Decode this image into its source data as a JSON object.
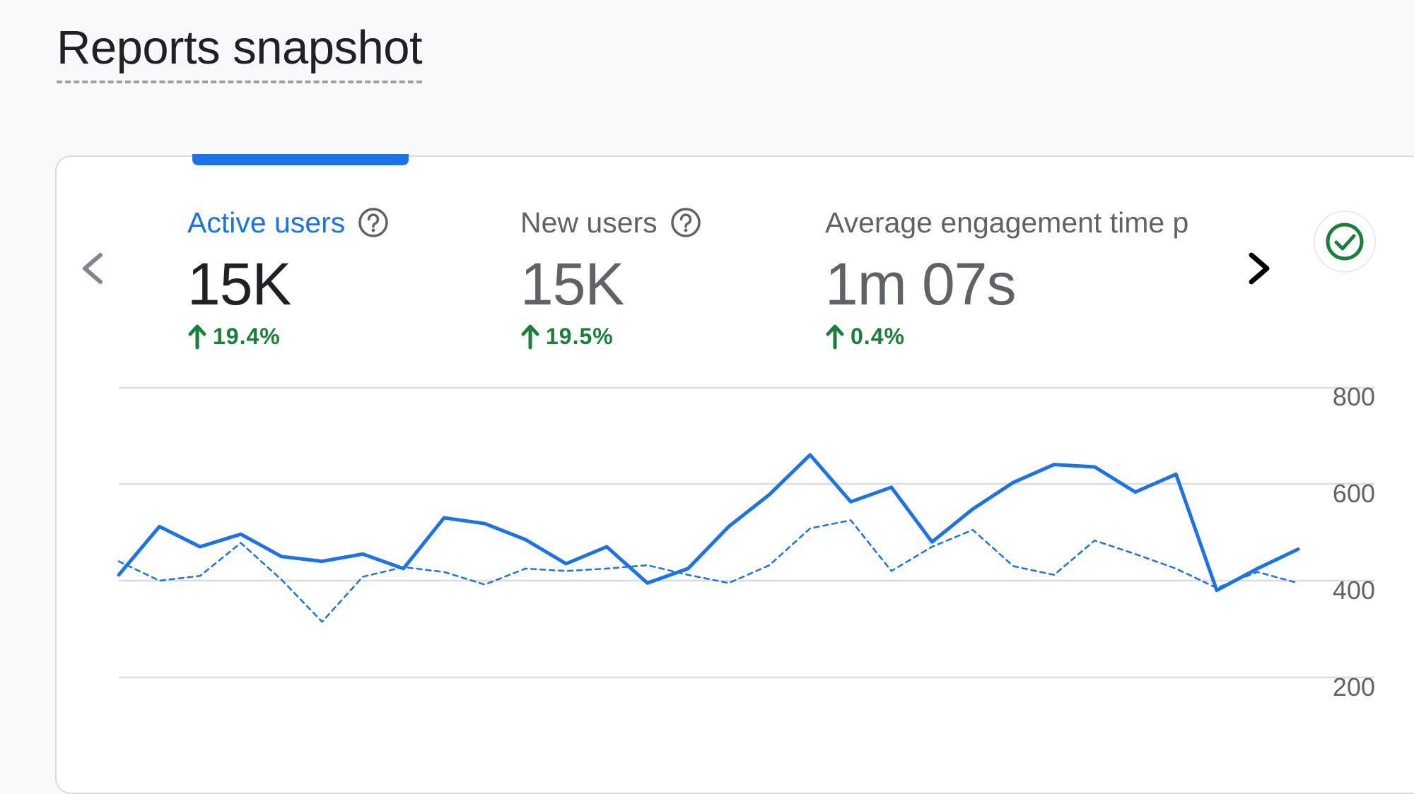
{
  "header": {
    "title": "Reports snapshot"
  },
  "metrics": [
    {
      "label": "Active users",
      "value": "15K",
      "change": "19.4%",
      "direction": "up",
      "selected": true,
      "has_help": true
    },
    {
      "label": "New users",
      "value": "15K",
      "change": "19.5%",
      "direction": "up",
      "selected": false,
      "has_help": true
    },
    {
      "label": "Average engagement time p",
      "value": "1m 07s",
      "change": "0.4%",
      "direction": "up",
      "selected": false,
      "has_help": false
    }
  ],
  "icons": {
    "prev": "chevron-left-icon",
    "next": "chevron-right-icon",
    "help": "help-circle-icon",
    "trend": "arrow-up-icon",
    "status": "check-circle-icon"
  },
  "colors": {
    "accent": "#1a73e8",
    "positive": "#188038",
    "gridline": "#dadce0",
    "text_primary": "#202124",
    "text_secondary": "#5f6368"
  },
  "chart_data": {
    "type": "line",
    "y_ticks": [
      "800",
      "600",
      "400",
      "200"
    ],
    "y_tick_values": [
      800,
      600,
      400,
      200
    ],
    "ylim": [
      200,
      800
    ],
    "grid": true,
    "y_axis_side": "right",
    "series": [
      {
        "style": "solid",
        "values": [
          412,
          512,
          470,
          496,
          450,
          440,
          455,
          425,
          530,
          518,
          485,
          435,
          470,
          395,
          425,
          512,
          578,
          660,
          563,
          593,
          480,
          548,
          603,
          640,
          635,
          583,
          620,
          380,
          425,
          465
        ]
      },
      {
        "style": "dashed",
        "values": [
          440,
          400,
          410,
          478,
          402,
          315,
          408,
          428,
          418,
          392,
          425,
          420,
          425,
          432,
          412,
          395,
          432,
          508,
          525,
          420,
          470,
          505,
          430,
          412,
          483,
          455,
          425,
          385,
          418,
          395
        ]
      }
    ]
  }
}
